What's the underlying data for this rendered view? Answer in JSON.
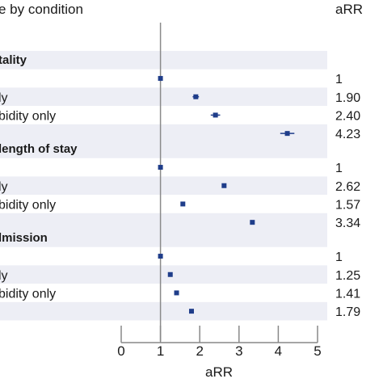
{
  "chart_data": {
    "type": "forest",
    "header_left": "e by condition",
    "header_right": "aRR",
    "xlabel": "aRR",
    "xlim": [
      0,
      5
    ],
    "xticks": [
      "0",
      "1",
      "2",
      "3",
      "4",
      "5"
    ],
    "reference_line": 1,
    "colors": {
      "marker": "#1f3d8a",
      "band": "#edeef5",
      "axis": "#888888"
    },
    "groups": [
      {
        "title": "tality",
        "rows": [
          {
            "label": "",
            "value": 1,
            "ci": [
              1,
              1
            ],
            "label_right": "1"
          },
          {
            "label": "ly",
            "value": 1.9,
            "ci": [
              1.82,
              1.98
            ],
            "label_right": "1.90"
          },
          {
            "label": "bidity only",
            "value": 2.4,
            "ci": [
              2.28,
              2.52
            ],
            "label_right": "2.40"
          },
          {
            "label": "",
            "value": 4.23,
            "ci": [
              4.05,
              4.41
            ],
            "label_right": "4.23"
          }
        ]
      },
      {
        "title": "length of stay",
        "rows": [
          {
            "label": "",
            "value": 1,
            "ci": [
              1,
              1
            ],
            "label_right": "1"
          },
          {
            "label": "ly",
            "value": 2.62,
            "ci": [
              2.6,
              2.64
            ],
            "label_right": "2.62"
          },
          {
            "label": "bidity only",
            "value": 1.57,
            "ci": [
              1.55,
              1.59
            ],
            "label_right": "1.57"
          },
          {
            "label": "",
            "value": 3.34,
            "ci": [
              3.3,
              3.38
            ],
            "label_right": "3.34"
          }
        ]
      },
      {
        "title": "lmission",
        "rows": [
          {
            "label": "",
            "value": 1,
            "ci": [
              1,
              1
            ],
            "label_right": "1"
          },
          {
            "label": "ly",
            "value": 1.25,
            "ci": [
              1.23,
              1.27
            ],
            "label_right": "1.25"
          },
          {
            "label": "bidity only",
            "value": 1.41,
            "ci": [
              1.39,
              1.43
            ],
            "label_right": "1.41"
          },
          {
            "label": "",
            "value": 1.79,
            "ci": [
              1.77,
              1.81
            ],
            "label_right": "1.79"
          }
        ]
      }
    ]
  }
}
